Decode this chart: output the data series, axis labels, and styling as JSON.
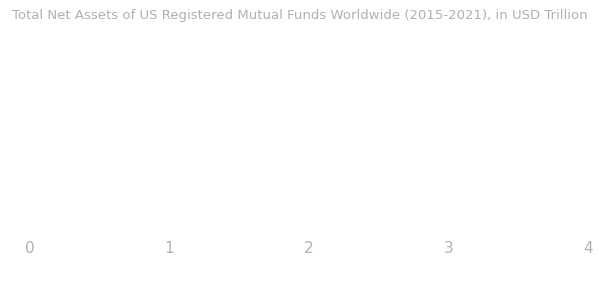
{
  "title": "Total Net Assets of US Registered Mutual Funds Worldwide (2015-2021), in USD Trillion",
  "title_fontsize": 9.5,
  "title_color": "#b0b0b0",
  "background_color": "#ffffff",
  "xlim": [
    0,
    4
  ],
  "xticks": [
    0,
    1,
    2,
    3,
    4
  ],
  "tick_color": "#b0b0b0",
  "tick_fontsize": 11,
  "figsize": [
    6.0,
    3.02
  ],
  "dpi": 100
}
